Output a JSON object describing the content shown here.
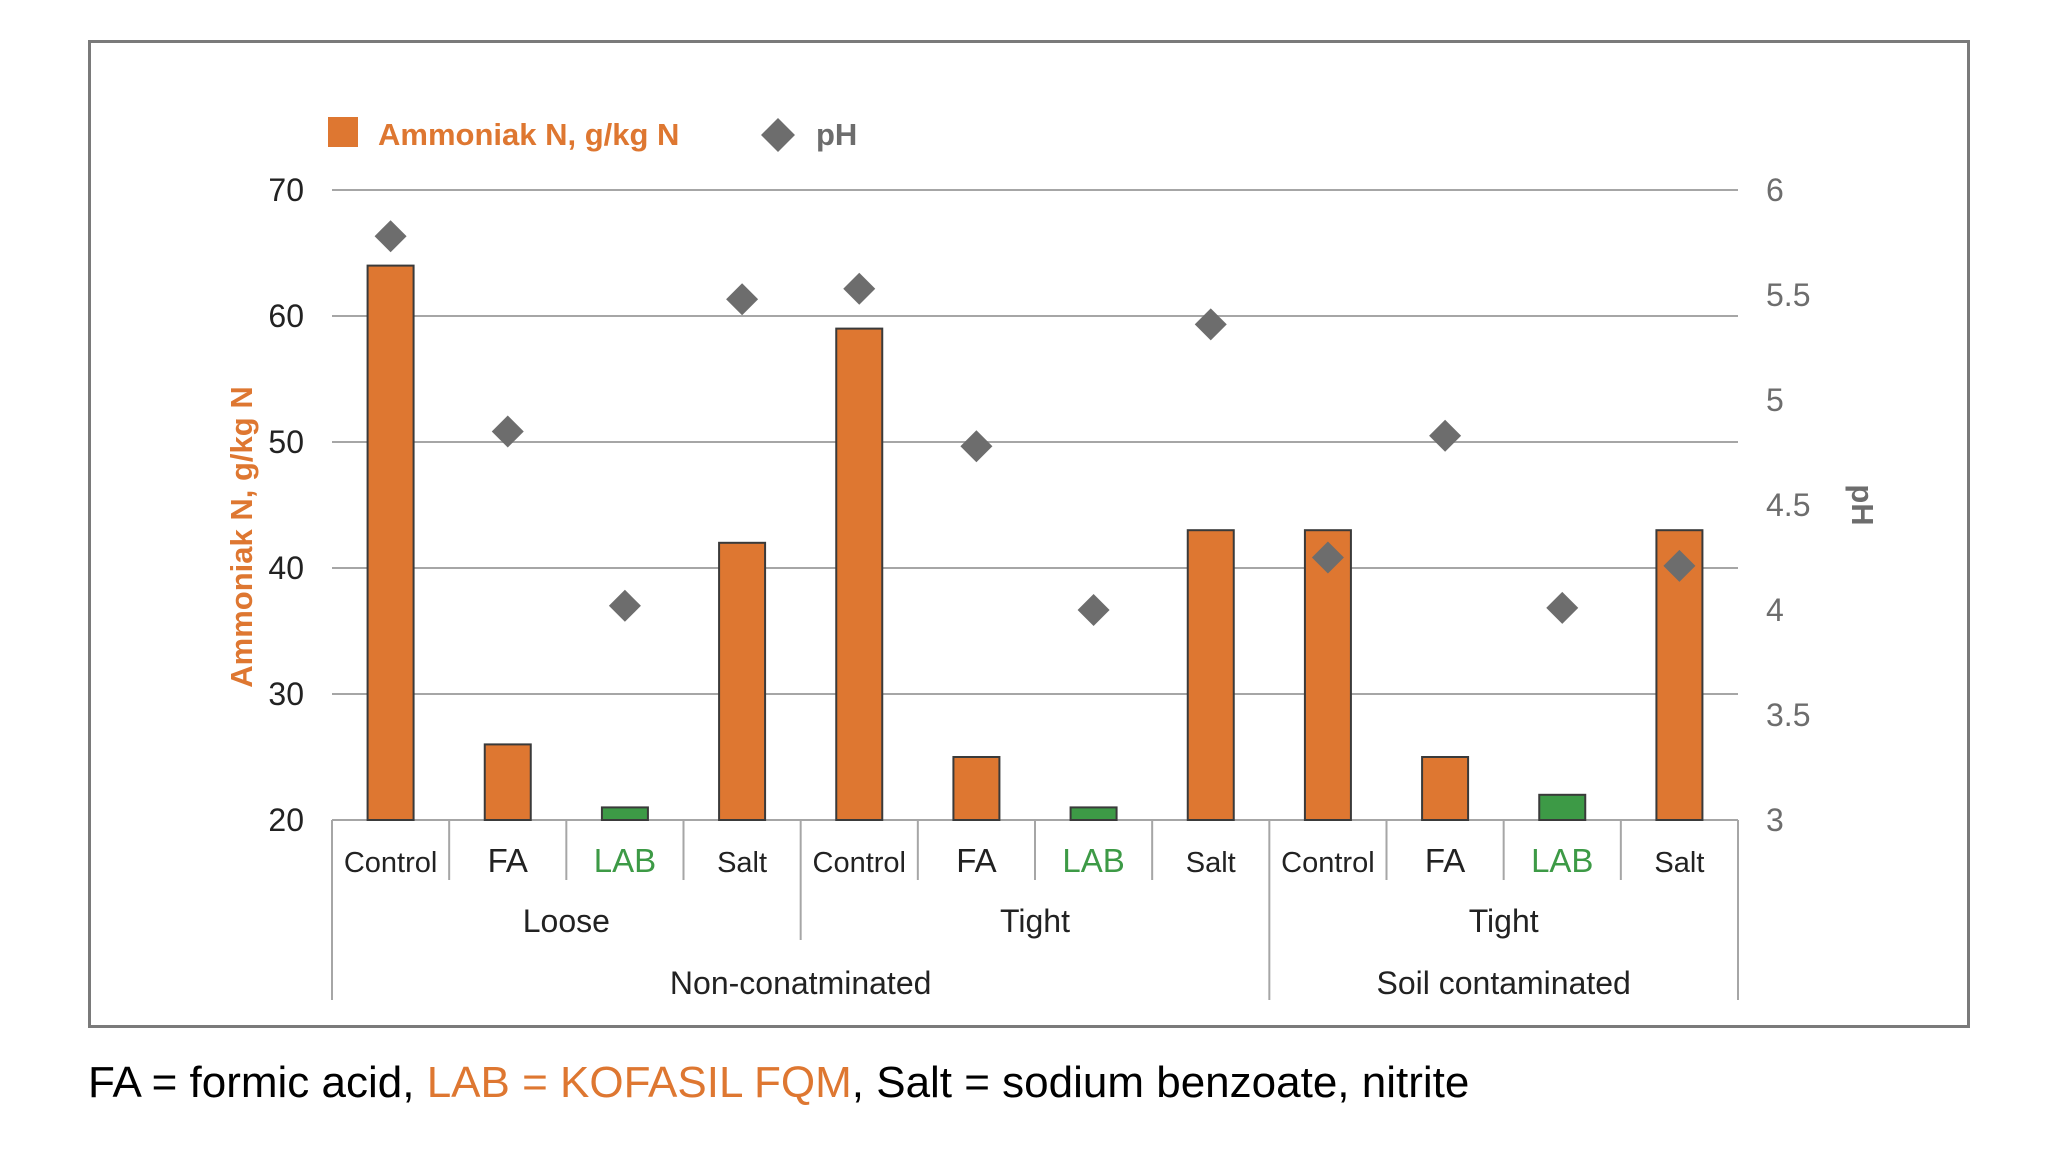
{
  "legend": {
    "bar_label": "Ammoniak N, g/kg N",
    "ph_label": "pH"
  },
  "colors": {
    "default_bar": "#de7731",
    "lab_bar": "#3d9a46",
    "ph_marker": "#6d6d6d",
    "lab_text": "#3d9a46",
    "grid": "#a6a6a6",
    "frame": "#7a7a7a"
  },
  "chart_data": {
    "type": "bar",
    "left_axis": {
      "label": "Ammoniak N, g/kg N",
      "range": [
        20,
        70
      ],
      "ticks": [
        20,
        30,
        40,
        50,
        60,
        70
      ]
    },
    "right_axis": {
      "label": "pH",
      "range": [
        3,
        6
      ],
      "ticks": [
        "3",
        "3.5",
        "4",
        "4.5",
        "5",
        "5.5",
        "6"
      ]
    },
    "categories": [
      "Control",
      "FA",
      "LAB",
      "Salt",
      "Control",
      "FA",
      "LAB",
      "Salt",
      "Control",
      "FA",
      "LAB",
      "Salt"
    ],
    "groups_level1": [
      {
        "label": "Loose",
        "count": 4
      },
      {
        "label": "Tight",
        "count": 4
      },
      {
        "label": "Tight",
        "count": 4
      }
    ],
    "groups_level2": [
      {
        "label": "Non-conatminated",
        "count": 8
      },
      {
        "label": "Soil contaminated",
        "count": 4
      }
    ],
    "series": [
      {
        "name": "Ammoniak N, g/kg N",
        "type": "bar",
        "values": [
          64,
          26,
          21,
          42,
          59,
          25,
          21,
          43,
          43,
          25,
          22,
          43
        ]
      },
      {
        "name": "pH",
        "type": "scatter",
        "values": [
          5.78,
          4.85,
          4.02,
          5.48,
          5.53,
          4.78,
          4.0,
          5.36,
          4.25,
          4.83,
          4.01,
          4.21
        ]
      }
    ],
    "grid": true,
    "legend_position": "top-left"
  },
  "caption": {
    "part1": "FA = formic acid, ",
    "part2": "LAB = KOFASIL FQM",
    "part3": ", Salt = sodium benzoate, nitrite"
  }
}
